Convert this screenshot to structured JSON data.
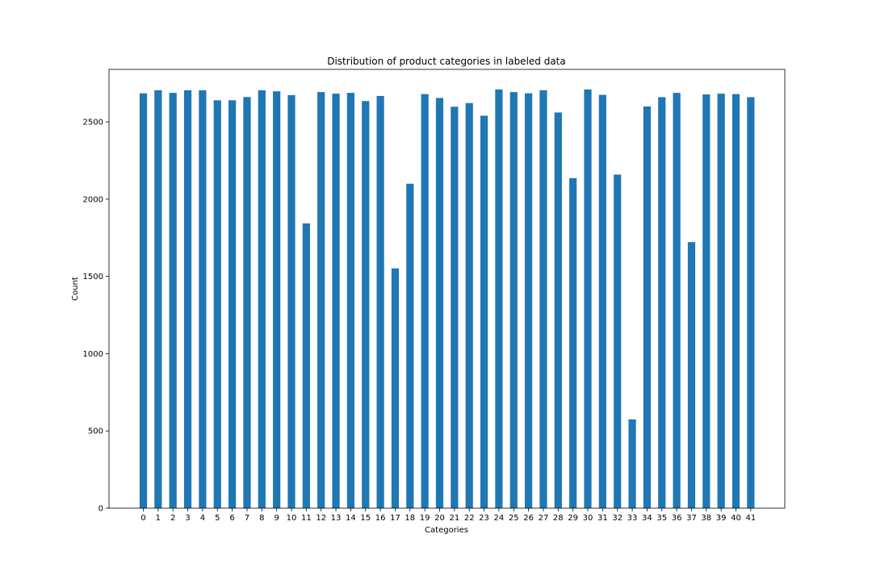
{
  "chart_data": {
    "type": "bar",
    "title": "Distribution of product categories in labeled data",
    "xlabel": "Categories",
    "ylabel": "Count",
    "categories": [
      "0",
      "1",
      "2",
      "3",
      "4",
      "5",
      "6",
      "7",
      "8",
      "9",
      "10",
      "11",
      "12",
      "13",
      "14",
      "15",
      "16",
      "17",
      "18",
      "19",
      "20",
      "21",
      "22",
      "23",
      "24",
      "25",
      "26",
      "27",
      "28",
      "29",
      "30",
      "31",
      "32",
      "33",
      "34",
      "35",
      "36",
      "37",
      "38",
      "39",
      "40",
      "41"
    ],
    "values": [
      2685,
      2705,
      2688,
      2705,
      2705,
      2640,
      2640,
      2661,
      2705,
      2698,
      2673,
      1843,
      2693,
      2683,
      2688,
      2635,
      2668,
      1552,
      2100,
      2680,
      2655,
      2598,
      2622,
      2540,
      2710,
      2693,
      2685,
      2705,
      2561,
      2136,
      2710,
      2675,
      2159,
      575,
      2600,
      2660,
      2688,
      1722,
      2678,
      2683,
      2680,
      2660
    ],
    "ylim": [
      0,
      2840
    ],
    "yticks": [
      0,
      500,
      1000,
      1500,
      2000,
      2500
    ],
    "bar_color": "#1f77b4",
    "grid": false
  }
}
